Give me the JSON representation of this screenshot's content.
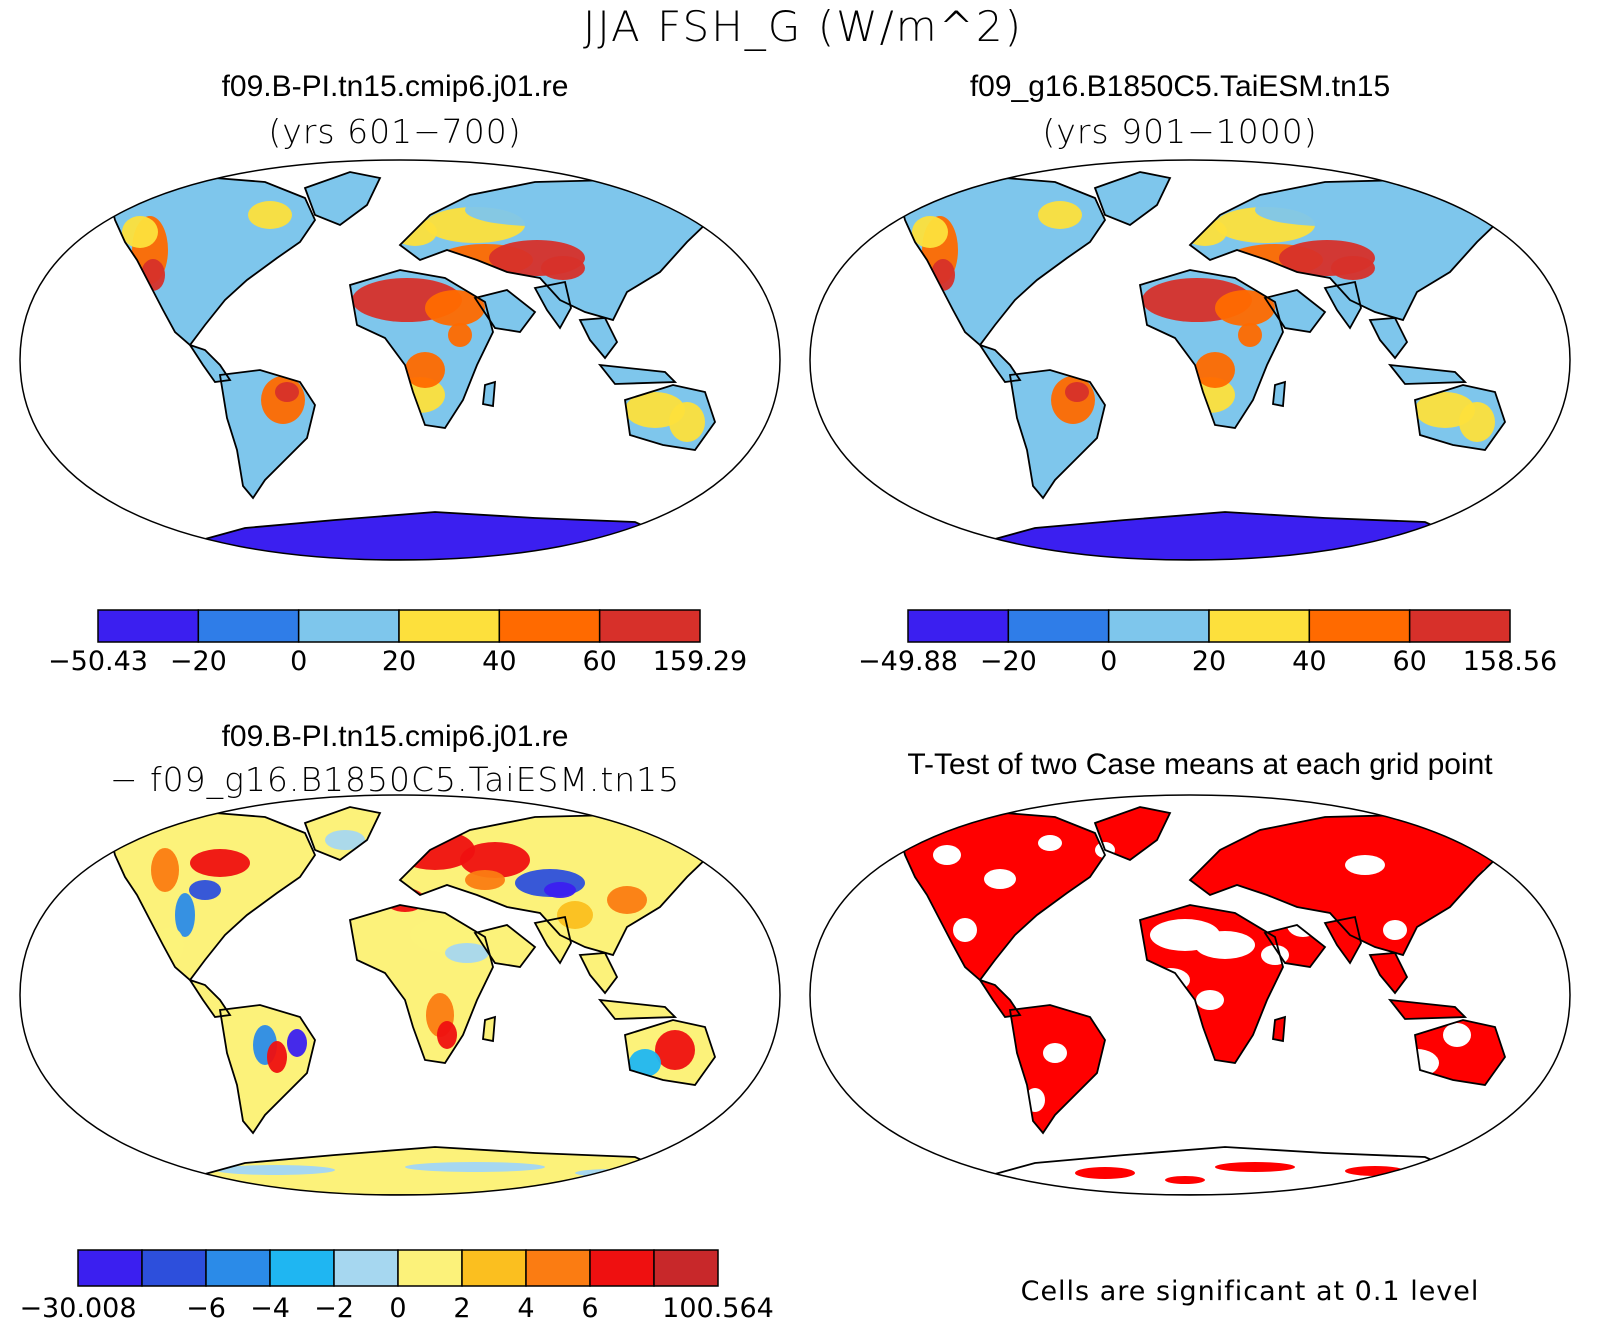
{
  "title": "JJA FSH_G (W/m^2)",
  "colors": {
    "levels6": [
      "#3b1ff0",
      "#2f7de8",
      "#7ec6ec",
      "#fde03c",
      "#ff6a00",
      "#d7302a"
    ],
    "levels10": [
      "#3b1ff0",
      "#2d4fdc",
      "#2b8be8",
      "#1fb6f2",
      "#a6d7f0",
      "#fcf27a",
      "#fbbf1f",
      "#fb7c12",
      "#ef1010",
      "#c8282a"
    ],
    "signif": "#ff0000",
    "antarctica_plain": "#3b1ff0",
    "antarctica_diff": "#fcf27a"
  },
  "panels": [
    {
      "title": "f09.B-PI.tn15.cmip6.j01.re",
      "subtitle": "(yrs 601−700)",
      "colorbar": {
        "labels": [
          "−50.43",
          "−20",
          "0",
          "20",
          "40",
          "60",
          "159.29"
        ]
      }
    },
    {
      "title": "f09_g16.B1850C5.TaiESM.tn15",
      "subtitle": "(yrs 901−1000)",
      "colorbar": {
        "labels": [
          "−49.88",
          "−20",
          "0",
          "20",
          "40",
          "60",
          "158.56"
        ]
      }
    },
    {
      "title": "f09.B-PI.tn15.cmip6.j01.re",
      "subtitle": "− f09_g16.B1850C5.TaiESM.tn15",
      "colorbar": {
        "labels": [
          "−30.008",
          "−6",
          "−4",
          "−2",
          "0",
          "2",
          "4",
          "6",
          "100.564"
        ]
      }
    },
    {
      "title": "T-Test of two Case means at each grid point",
      "note": "Cells are significant at 0.1 level"
    }
  ]
}
